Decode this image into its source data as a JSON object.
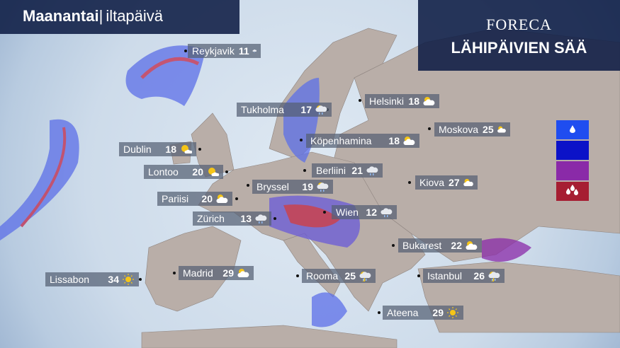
{
  "header": {
    "day": "Maanantai",
    "separator": "|",
    "period": "iltapäivä"
  },
  "brand": {
    "logo": "FORECA",
    "headline": "LÄHIPÄIVIEN SÄÄ"
  },
  "legend": {
    "colors": [
      "#1f4df0",
      "#0b12c8",
      "#8a2aa8",
      "#a61e32"
    ],
    "icons": [
      "drop-icon",
      "",
      "",
      "heavy-rain-icon"
    ]
  },
  "colors": {
    "land": "#b9aea8",
    "sea": "#d4e1ee",
    "precip_light": "#5c6fe8",
    "precip_heavy": "#c0284a"
  },
  "cities": [
    {
      "name": "Reykjavik",
      "temp": "11",
      "icon": "rain"
    },
    {
      "name": "Tukholma",
      "temp": "17",
      "icon": "shower"
    },
    {
      "name": "Helsinki",
      "temp": "18",
      "icon": "partly-cloudy"
    },
    {
      "name": "Moskova",
      "temp": "25",
      "icon": "partly-cloudy"
    },
    {
      "name": "Köpenhamina",
      "temp": "18",
      "icon": "partly-cloudy"
    },
    {
      "name": "Dublin",
      "temp": "18",
      "icon": "mostly-sunny"
    },
    {
      "name": "Lontoo",
      "temp": "20",
      "icon": "mostly-sunny"
    },
    {
      "name": "Berliini",
      "temp": "21",
      "icon": "rain"
    },
    {
      "name": "Kiova",
      "temp": "27",
      "icon": "partly-cloudy"
    },
    {
      "name": "Bryssel",
      "temp": "19",
      "icon": "shower"
    },
    {
      "name": "Pariisi",
      "temp": "20",
      "icon": "partly-cloudy"
    },
    {
      "name": "Wien",
      "temp": "12",
      "icon": "rain"
    },
    {
      "name": "Zürich",
      "temp": "13",
      "icon": "rain"
    },
    {
      "name": "Bukarest",
      "temp": "22",
      "icon": "partly-cloudy"
    },
    {
      "name": "Lissabon",
      "temp": "34",
      "icon": "sun"
    },
    {
      "name": "Madrid",
      "temp": "29",
      "icon": "partly-cloudy"
    },
    {
      "name": "Rooma",
      "temp": "25",
      "icon": "thunder-shower"
    },
    {
      "name": "Istanbul",
      "temp": "26",
      "icon": "thunder-shower"
    },
    {
      "name": "Ateena",
      "temp": "29",
      "icon": "sun"
    }
  ]
}
